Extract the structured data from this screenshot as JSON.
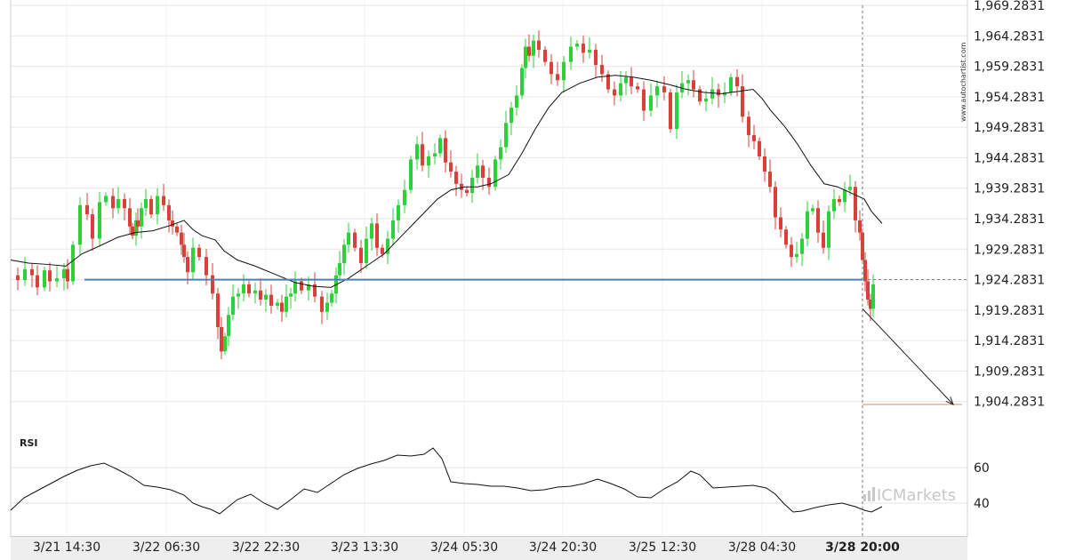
{
  "chart_data": [
    {
      "type": "candlestick",
      "title": "",
      "ylim": [
        1899.2831,
        1969.2831
      ],
      "y_ticks": [
        "1,969.2831",
        "1,964.2831",
        "1,959.2831",
        "1,954.2831",
        "1,949.2831",
        "1,944.2831",
        "1,939.2831",
        "1,934.2831",
        "1,929.2831",
        "1,924.2831",
        "1,919.2831",
        "1,914.2831",
        "1,909.2831",
        "1,904.2831"
      ],
      "x_ticks": [
        "3/21 14:30",
        "3/22 06:30",
        "3/22 22:30",
        "3/23 13:30",
        "3/24 05:30",
        "3/24 20:30",
        "3/25 12:30",
        "3/28 04:30",
        "3/28 20:00"
      ],
      "highlighted_x_tick": "3/28 20:00",
      "series": [
        {
          "kind": "candles_close_path",
          "up_color": "#2fd13a",
          "down_color": "#d9403a",
          "x": [
            0,
            8,
            16,
            24,
            30,
            38,
            44,
            52,
            60,
            64,
            70,
            78,
            86,
            92,
            100,
            107,
            115,
            121,
            128,
            134,
            137,
            141,
            143,
            147,
            152,
            158,
            165,
            172,
            178,
            182,
            187,
            192,
            195,
            199,
            205,
            212,
            220,
            227,
            233,
            237,
            241,
            245,
            250,
            256,
            262,
            268,
            275,
            281,
            287,
            293,
            300,
            305,
            310,
            315,
            320,
            327,
            335,
            342,
            350,
            356,
            361,
            366,
            370,
            375,
            380,
            387,
            394,
            400,
            406,
            412,
            418,
            424,
            430,
            436,
            443,
            450,
            457,
            463,
            470,
            477,
            483,
            489,
            495,
            501,
            507,
            513,
            519,
            525,
            531,
            538,
            545,
            551,
            557,
            563,
            569,
            575,
            579,
            583,
            588,
            594,
            601,
            608,
            615,
            622,
            630,
            637,
            644,
            651,
            658,
            665,
            672,
            679,
            686,
            692,
            698,
            705,
            712,
            720,
            727,
            735,
            742,
            749,
            755,
            762,
            768,
            775,
            782,
            789,
            796,
            803,
            810,
            817,
            823,
            830,
            836,
            842,
            848,
            854,
            860,
            866,
            872,
            878,
            884,
            890,
            896,
            902,
            908,
            914,
            920,
            926,
            932,
            938,
            944,
            950,
            955,
            958,
            961,
            964,
            967,
            970
          ],
          "close": [
            1925.0,
            1924.2,
            1926.0,
            1925.0,
            1923.0,
            1925.8,
            1924.0,
            1924.5,
            1926.0,
            1924.0,
            1930.0,
            1936.5,
            1935.0,
            1931.0,
            1937.0,
            1938.0,
            1936.0,
            1937.5,
            1936.0,
            1933.0,
            1931.5,
            1934.0,
            1933.0,
            1936.0,
            1937.5,
            1935.0,
            1938.0,
            1936.5,
            1934.0,
            1933.0,
            1932.0,
            1930.0,
            1928.0,
            1925.5,
            1929.5,
            1928.0,
            1925.0,
            1922.0,
            1916.5,
            1912.5,
            1915.0,
            1918.5,
            1921.5,
            1922.0,
            1923.5,
            1922.0,
            1922.5,
            1921.0,
            1921.8,
            1920.0,
            1920.5,
            1919.0,
            1921.5,
            1922.0,
            1924.0,
            1922.5,
            1923.5,
            1921.5,
            1919.0,
            1920.5,
            1922.0,
            1925.0,
            1927.0,
            1930.0,
            1932.0,
            1929.5,
            1927.0,
            1931.0,
            1933.5,
            1929.5,
            1928.5,
            1931.0,
            1934.0,
            1936.5,
            1939.0,
            1944.0,
            1946.5,
            1943.0,
            1944.5,
            1945.0,
            1947.5,
            1943.5,
            1942.0,
            1940.0,
            1939.0,
            1938.5,
            1941.0,
            1943.0,
            1941.0,
            1939.5,
            1944.0,
            1946.0,
            1950.0,
            1952.5,
            1954.5,
            1959.0,
            1962.5,
            1961.0,
            1963.5,
            1962.0,
            1960.0,
            1958.0,
            1957.0,
            1960.0,
            1962.5,
            1963.0,
            1961.5,
            1962.0,
            1959.5,
            1958.0,
            1955.5,
            1954.5,
            1956.5,
            1957.5,
            1956.0,
            1955.5,
            1952.0,
            1954.5,
            1956.0,
            1955.0,
            1949.0,
            1955.0,
            1956.5,
            1957.0,
            1955.5,
            1953.5,
            1954.0,
            1955.5,
            1954.5,
            1955.0,
            1957.5,
            1956.0,
            1951.0,
            1948.0,
            1947.0,
            1944.5,
            1942.0,
            1939.5,
            1934.5,
            1932.5,
            1930.0,
            1928.0,
            1928.5,
            1931.0,
            1935.5,
            1936.0,
            1932.0,
            1929.5,
            1935.5,
            1937.5,
            1937.0,
            1939.0,
            1939.5,
            1934.0,
            1932.0,
            1927.5,
            1924.0,
            1921.0,
            1919.5,
            1923.5
          ]
        },
        {
          "kind": "line",
          "color": "#111111",
          "x": [
            0,
            20,
            40,
            62,
            80,
            100,
            120,
            140,
            160,
            180,
            195,
            205,
            215,
            230,
            240,
            255,
            275,
            300,
            320,
            340,
            360,
            380,
            400,
            420,
            440,
            460,
            480,
            495,
            510,
            525,
            540,
            560,
            575,
            590,
            605,
            620,
            640,
            660,
            680,
            700,
            720,
            740,
            760,
            780,
            800,
            820,
            835,
            845,
            855,
            870,
            885,
            900,
            915,
            930,
            945,
            960,
            968,
            980
          ],
          "y": [
            1927.5,
            1927.0,
            1926.8,
            1926.5,
            1928.5,
            1929.8,
            1931.2,
            1932.0,
            1932.3,
            1933.2,
            1934.0,
            1932.5,
            1931.5,
            1930.8,
            1929.0,
            1927.5,
            1926.5,
            1925.0,
            1923.8,
            1923.2,
            1923.0,
            1924.5,
            1926.5,
            1928.5,
            1931.5,
            1934.5,
            1937.5,
            1939.0,
            1939.5,
            1939.5,
            1940.0,
            1941.5,
            1945.0,
            1949.0,
            1952.5,
            1955.0,
            1956.5,
            1957.5,
            1957.8,
            1957.5,
            1957.0,
            1956.3,
            1955.5,
            1955.0,
            1954.8,
            1955.2,
            1955.5,
            1954.0,
            1952.0,
            1949.5,
            1946.5,
            1943.0,
            1940.0,
            1939.5,
            1938.5,
            1937.5,
            1935.5,
            1933.5
          ]
        }
      ],
      "annotations": {
        "support_line_y": 1924.2831,
        "support_line_color": "#4a7fbf",
        "vertical_marker_tick": "3/28 20:00",
        "projection_arrow": {
          "from_y": 1919.5,
          "to_y": 1903.8
        },
        "target_line_y": 1903.8,
        "target_line_color": "#e08a5a",
        "current_price_dashed_y": 1924.2831
      }
    },
    {
      "type": "line",
      "title": "RSI",
      "ylim": [
        25,
        80
      ],
      "y_ticks": [
        "60",
        "40"
      ],
      "series": [
        {
          "color": "#111111",
          "x": [
            0,
            15,
            30,
            45,
            60,
            75,
            90,
            105,
            120,
            135,
            150,
            165,
            180,
            195,
            205,
            215,
            225,
            235,
            245,
            255,
            270,
            285,
            300,
            315,
            330,
            345,
            360,
            375,
            390,
            405,
            420,
            435,
            450,
            465,
            475,
            485,
            495,
            510,
            525,
            540,
            555,
            570,
            585,
            600,
            615,
            630,
            645,
            660,
            675,
            690,
            705,
            720,
            735,
            750,
            765,
            775,
            790,
            805,
            820,
            835,
            850,
            860,
            870,
            880,
            890,
            905,
            920,
            935,
            950,
            960,
            968,
            980
          ],
          "y": [
            36.0,
            43.0,
            47.0,
            51.0,
            55.0,
            58.5,
            61.0,
            62.5,
            59.0,
            55.0,
            50.0,
            49.0,
            47.5,
            44.5,
            40.0,
            38.0,
            36.5,
            34.0,
            38.0,
            42.0,
            45.0,
            40.0,
            36.5,
            42.0,
            48.0,
            46.0,
            51.0,
            56.0,
            59.5,
            62.0,
            64.0,
            67.0,
            66.5,
            67.5,
            71.0,
            65.0,
            52.0,
            51.0,
            50.5,
            49.5,
            49.5,
            48.5,
            47.0,
            47.5,
            49.0,
            49.5,
            51.0,
            53.5,
            51.0,
            48.0,
            43.5,
            43.0,
            48.0,
            52.0,
            58.0,
            56.0,
            48.5,
            49.0,
            49.5,
            50.0,
            48.5,
            45.0,
            39.5,
            35.0,
            35.5,
            37.5,
            39.0,
            40.0,
            38.0,
            36.0,
            35.0,
            38.0
          ]
        }
      ]
    }
  ],
  "watermark": "www.autochartist.com",
  "logo_text": "ICMarkets"
}
